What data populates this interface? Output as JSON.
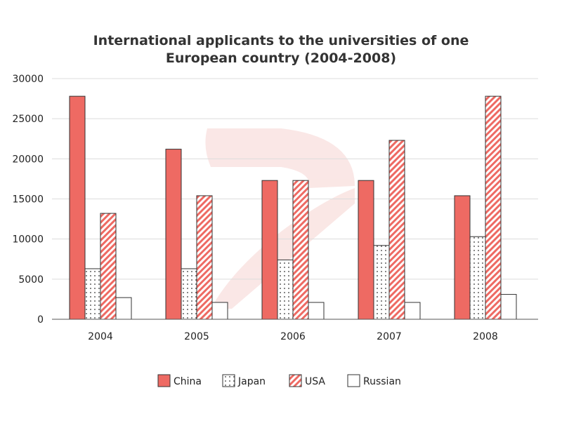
{
  "chart_data": {
    "type": "bar",
    "title_lines": [
      "International applicants to the universities of one",
      "European country (2004-2008)"
    ],
    "categories": [
      "2004",
      "2005",
      "2006",
      "2007",
      "2008"
    ],
    "series": [
      {
        "name": "China",
        "pattern": "solid",
        "values": [
          27800,
          21200,
          17300,
          17300,
          15400
        ]
      },
      {
        "name": "Japan",
        "pattern": "dots",
        "values": [
          6300,
          6300,
          7400,
          9200,
          10300
        ]
      },
      {
        "name": "USA",
        "pattern": "stripes",
        "values": [
          13200,
          15400,
          17300,
          22300,
          27800
        ]
      },
      {
        "name": "Russian",
        "pattern": "empty",
        "values": [
          2700,
          2100,
          2100,
          2100,
          3100
        ]
      }
    ],
    "yticks": [
      "0",
      "5000",
      "10000",
      "15000",
      "20000",
      "25000",
      "30000"
    ],
    "ylim": [
      0,
      30000
    ],
    "xlabel": "",
    "ylabel": "",
    "grid": true,
    "legend_position": "bottom-center"
  },
  "colors": {
    "accent": "#ee6a63",
    "stroke": "#333333",
    "grid": "#dcdcdc",
    "watermark": "#f9e3e1"
  }
}
